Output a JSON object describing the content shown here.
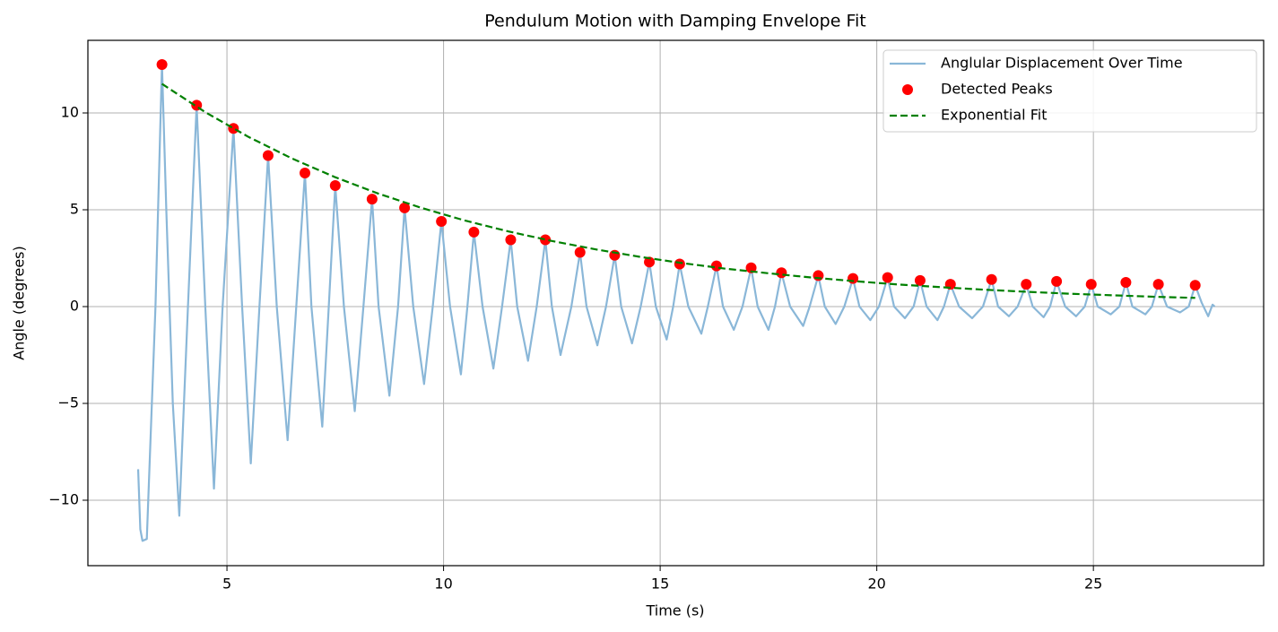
{
  "chart_data": {
    "type": "line",
    "title": "Pendulum Motion with Damping Envelope Fit",
    "xlabel": "Time (s)",
    "ylabel": "Angle (degrees)",
    "xlim": [
      1.79,
      28.93
    ],
    "ylim": [
      -13.38,
      13.75
    ],
    "xticks": [
      5,
      10,
      15,
      20,
      25
    ],
    "yticks": [
      {
        "value": -10,
        "label": "−10"
      },
      {
        "value": -5,
        "label": "−5"
      },
      0,
      5,
      10
    ],
    "grid": true,
    "legend": "upper right",
    "series": [
      {
        "name": "Anglular Displacement Over Time",
        "color": "#8ab7d8",
        "style": "line",
        "x": [
          2.95,
          3.0,
          3.05,
          3.15,
          3.2,
          3.35,
          3.5,
          3.6,
          3.75,
          3.9,
          4.1,
          4.3,
          4.5,
          4.7,
          4.9,
          5.15,
          5.35,
          5.55,
          5.75,
          5.95,
          6.15,
          6.4,
          6.6,
          6.8,
          6.95,
          7.2,
          7.35,
          7.5,
          7.7,
          7.95,
          8.15,
          8.35,
          8.5,
          8.75,
          8.95,
          9.1,
          9.3,
          9.55,
          9.75,
          9.95,
          10.15,
          10.4,
          10.55,
          10.7,
          10.9,
          11.15,
          11.35,
          11.55,
          11.7,
          11.95,
          12.15,
          12.35,
          12.5,
          12.7,
          12.95,
          13.15,
          13.3,
          13.55,
          13.75,
          13.95,
          14.1,
          14.35,
          14.55,
          14.75,
          14.9,
          15.15,
          15.3,
          15.45,
          15.65,
          15.95,
          16.1,
          16.3,
          16.45,
          16.7,
          16.9,
          17.1,
          17.25,
          17.5,
          17.65,
          17.8,
          18.0,
          18.3,
          18.45,
          18.65,
          18.8,
          19.05,
          19.25,
          19.45,
          19.6,
          19.85,
          20.05,
          20.25,
          20.4,
          20.65,
          20.85,
          21.0,
          21.15,
          21.4,
          21.55,
          21.7,
          21.9,
          22.2,
          22.45,
          22.65,
          22.8,
          23.05,
          23.25,
          23.45,
          23.6,
          23.85,
          24.0,
          24.15,
          24.35,
          24.6,
          24.8,
          24.95,
          25.1,
          25.4,
          25.6,
          25.75,
          25.9,
          26.2,
          26.35,
          26.5,
          26.7,
          27.0,
          27.2,
          27.35,
          27.5,
          27.65,
          27.75,
          27.8
        ],
        "values": [
          -8.4,
          -11.5,
          -12.1,
          -12,
          -9,
          0,
          12.5,
          5,
          -5,
          -10.8,
          0,
          10.4,
          0,
          -9.4,
          0,
          9.2,
          0,
          -8.1,
          0,
          7.8,
          0,
          -6.9,
          0,
          6.9,
          0,
          -6.2,
          0,
          6.25,
          0,
          -5.4,
          0,
          5.55,
          0,
          -4.6,
          0,
          5.1,
          0,
          -4,
          0,
          4.4,
          0,
          -3.5,
          0,
          3.85,
          0,
          -3.2,
          0,
          3.45,
          0,
          -2.8,
          0,
          3.45,
          0,
          -2.5,
          0,
          2.8,
          0,
          -2.0,
          0,
          2.65,
          0,
          -1.9,
          0,
          2.3,
          0,
          -1.7,
          0,
          2.2,
          0,
          -1.4,
          0,
          2.1,
          0,
          -1.2,
          0,
          2.0,
          0,
          -1.2,
          0,
          1.75,
          0,
          -1.0,
          0,
          1.6,
          0,
          -0.9,
          0,
          1.45,
          0,
          -0.7,
          0,
          1.5,
          0,
          -0.6,
          0,
          1.35,
          0,
          -0.7,
          0,
          1.15,
          0,
          -0.6,
          0,
          1.4,
          0,
          -0.5,
          0,
          1.15,
          0,
          -0.55,
          0,
          1.3,
          0,
          -0.5,
          0,
          1.15,
          0,
          -0.4,
          0,
          1.25,
          0,
          -0.4,
          0,
          1.15,
          0,
          -0.3,
          0,
          1.1,
          0.2,
          -0.5,
          0.1,
          0
        ]
      },
      {
        "name": "Detected Peaks",
        "color": "#ff0000",
        "style": "marker",
        "x": [
          3.5,
          4.3,
          5.15,
          5.95,
          6.8,
          7.5,
          8.35,
          9.1,
          9.95,
          10.7,
          11.55,
          12.35,
          13.15,
          13.95,
          14.75,
          15.45,
          16.3,
          17.1,
          17.8,
          18.65,
          19.45,
          20.25,
          21.0,
          21.7,
          22.65,
          23.45,
          24.15,
          24.95,
          25.75,
          26.5,
          27.35
        ],
        "values": [
          12.5,
          10.4,
          9.2,
          7.8,
          6.9,
          6.25,
          5.55,
          5.1,
          4.4,
          3.85,
          3.45,
          3.45,
          2.8,
          2.65,
          2.3,
          2.2,
          2.1,
          2.0,
          1.75,
          1.6,
          1.45,
          1.5,
          1.35,
          1.15,
          1.4,
          1.15,
          1.3,
          1.15,
          1.25,
          1.15,
          1.1
        ]
      },
      {
        "name": "Exponential Fit",
        "color": "#008000",
        "style": "dashed",
        "x": [
          3.5,
          4.5,
          5.5,
          6.5,
          7.5,
          8.5,
          9.5,
          10.5,
          11.5,
          12.5,
          13.5,
          14.5,
          15.5,
          16.5,
          17.5,
          18.5,
          19.5,
          20.5,
          21.5,
          22.5,
          23.5,
          24.5,
          25.5,
          26.5,
          27.35
        ],
        "values": [
          11.5,
          10.04,
          8.76,
          7.65,
          6.68,
          5.83,
          5.09,
          4.44,
          3.88,
          3.39,
          2.96,
          2.58,
          2.25,
          1.96,
          1.72,
          1.5,
          1.31,
          1.14,
          1.0,
          0.87,
          0.76,
          0.66,
          0.58,
          0.5,
          0.45
        ]
      }
    ]
  }
}
